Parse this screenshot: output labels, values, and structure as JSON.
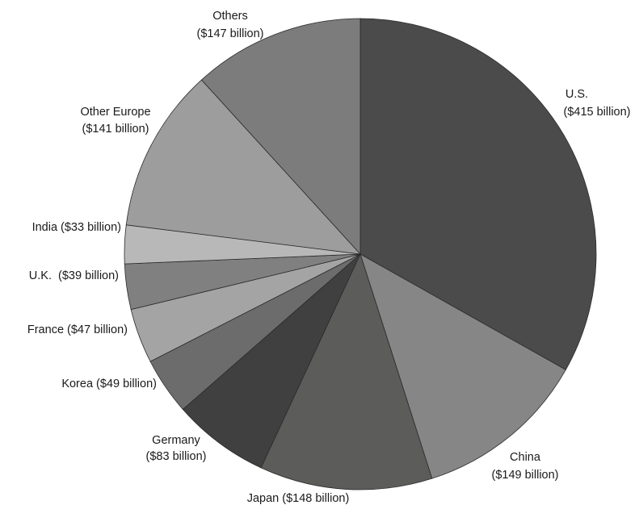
{
  "chart_data": {
    "type": "pie",
    "start_angle_deg": 0,
    "direction": "clockwise",
    "slices": [
      {
        "label": "U.S.",
        "value_text": "($415 billion)",
        "value": 415,
        "color": "#4a4b4a"
      },
      {
        "label": "China",
        "value_text": "($149 billion)",
        "value": 149,
        "color": "#858685"
      },
      {
        "label": "Japan ($148 billion)",
        "value_text": "",
        "value": 148,
        "color": "#5c5c5b"
      },
      {
        "label": "Germany",
        "value_text": "($83 billion)",
        "value": 83,
        "color": "#3f403f"
      },
      {
        "label": "Korea ($49 billion)",
        "value_text": "",
        "value": 49,
        "color": "#6b6c6b"
      },
      {
        "label": "France ($47 billion)",
        "value_text": "",
        "value": 47,
        "color": "#a3a4a3"
      },
      {
        "label": "U.K.  ($39 billion)",
        "value_text": "",
        "value": 39,
        "color": "#7f807f"
      },
      {
        "label": "India ($33 billion)",
        "value_text": "",
        "value": 33,
        "color": "#b7b8b7"
      },
      {
        "label": "Other Europe",
        "value_text": "($141 billion)",
        "value": 141,
        "color": "#9c9d9c"
      },
      {
        "label": "Others",
        "value_text": "($147 billion)",
        "value": 147,
        "color": "#7b7c7b"
      }
    ]
  }
}
